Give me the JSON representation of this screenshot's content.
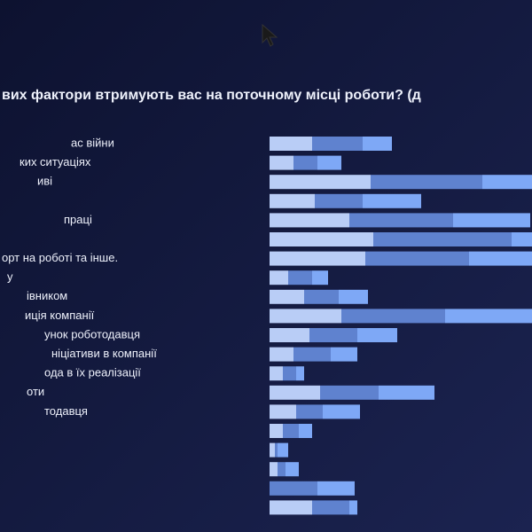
{
  "chart_data": {
    "type": "bar",
    "orientation": "horizontal",
    "stacked": true,
    "title": "вих фактори втримують вас на поточному місці роботи? (д",
    "categories": [
      "ас війни",
      "ких ситуаціях",
      "иві",
      null,
      "праці",
      null,
      "орт на роботі та інше.",
      "у",
      "івником",
      "иція компанії",
      "унок роботодавця",
      "ніціативи в компанії",
      "ода в їх реалізації",
      "оти",
      "тодавця",
      null,
      null,
      null,
      null,
      null
    ],
    "series": [
      {
        "color": "#b9cdf6",
        "values": [
          16,
          9,
          38,
          17,
          30,
          39,
          36,
          7,
          13,
          27,
          15,
          9,
          5,
          19,
          10,
          5,
          2,
          3,
          0,
          16
        ]
      },
      {
        "color": "#5f82cf",
        "values": [
          19,
          9,
          42,
          18,
          39,
          52,
          39,
          9,
          13,
          39,
          18,
          14,
          5,
          22,
          10,
          6,
          1,
          3,
          18,
          14
        ]
      },
      {
        "color": "#7ea8f6",
        "values": [
          11,
          9,
          25,
          22,
          29,
          15,
          30,
          6,
          11,
          35,
          15,
          10,
          3,
          21,
          14,
          5,
          4,
          5,
          14,
          3
        ]
      }
    ]
  }
}
